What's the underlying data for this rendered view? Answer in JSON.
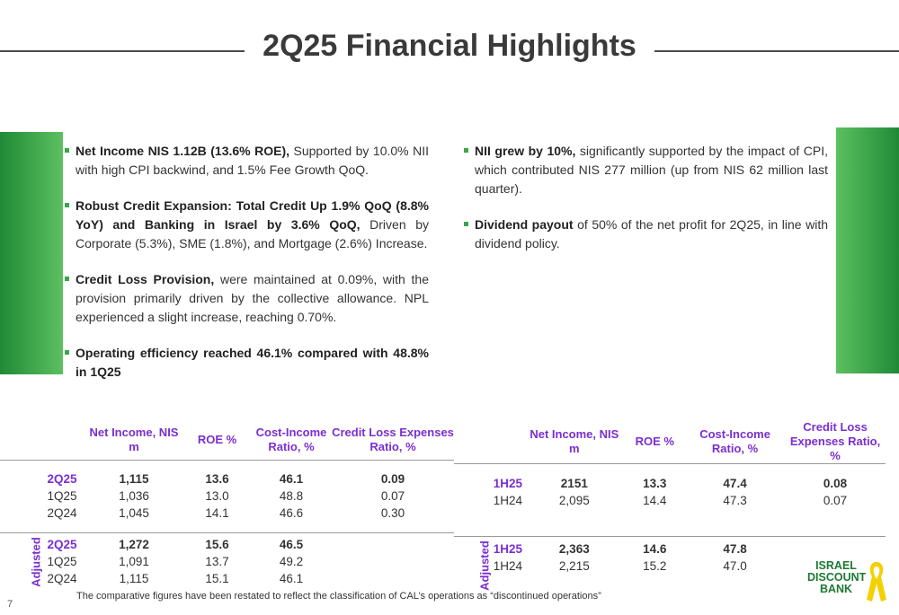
{
  "title": "2Q25 Financial Highlights",
  "left_bullets": [
    {
      "bold": "Net Income NIS 1.12B (13.6% ROE),",
      "text": " Supported by 10.0% NII with high CPI backwind, and 1.5% Fee Growth QoQ."
    },
    {
      "bold": "Robust Credit Expansion: Total Credit Up 1.9% QoQ (8.8% YoY) and Banking in Israel by 3.6% QoQ,",
      "text": " Driven by Corporate (5.3%), SME (1.8%), and Mortgage (2.6%) Increase."
    },
    {
      "bold": "Credit Loss Provision,",
      "text": " were maintained at 0.09%, with the provision primarily driven by the collective allowance. NPL experienced a slight increase, reaching 0.70%."
    },
    {
      "bold": "Operating efficiency reached 46.1% compared with  48.8% in 1Q25",
      "text": ""
    }
  ],
  "right_bullets": [
    {
      "bold": "NII grew by 10%,",
      "text": " significantly supported by the impact of CPI, which contributed NIS 277 million (up from NIS 62 million last quarter)."
    },
    {
      "bold": "Dividend payout",
      "text": " of 50% of the net profit for 2Q25, in line with dividend policy."
    }
  ],
  "table_left": {
    "headers": [
      "Net Income, NIS m",
      "ROE %",
      "Cost-Income Ratio, %",
      "Credit Loss Expenses Ratio, %"
    ],
    "reported": [
      {
        "period": "2Q25",
        "net_income": "1,115",
        "roe": "13.6",
        "cost_income": "46.1",
        "credit_loss": "0.09"
      },
      {
        "period": "1Q25",
        "net_income": "1,036",
        "roe": "13.0",
        "cost_income": "48.8",
        "credit_loss": "0.07"
      },
      {
        "period": "2Q24",
        "net_income": "1,045",
        "roe": "14.1",
        "cost_income": "46.6",
        "credit_loss": "0.30"
      }
    ],
    "adjusted_label": "Adjusted",
    "adjusted": [
      {
        "period": "2Q25",
        "net_income": "1,272",
        "roe": "15.6",
        "cost_income": "46.5"
      },
      {
        "period": "1Q25",
        "net_income": "1,091",
        "roe": "13.7",
        "cost_income": "49.2"
      },
      {
        "period": "2Q24",
        "net_income": "1,115",
        "roe": "15.1",
        "cost_income": "46.1"
      }
    ]
  },
  "table_right": {
    "headers": [
      "Net Income, NIS m",
      "ROE %",
      "Cost-Income Ratio, %",
      "Credit Loss Expenses Ratio, %"
    ],
    "reported": [
      {
        "period": "1H25",
        "net_income": "2151",
        "roe": "13.3",
        "cost_income": "47.4",
        "credit_loss": "0.08"
      },
      {
        "period": "1H24",
        "net_income": "2,095",
        "roe": "14.4",
        "cost_income": "47.3",
        "credit_loss": "0.07"
      }
    ],
    "adjusted_label": "Adjusted",
    "adjusted": [
      {
        "period": "1H25",
        "net_income": "2,363",
        "roe": "14.6",
        "cost_income": "47.8"
      },
      {
        "period": "1H24",
        "net_income": "2,215",
        "roe": "15.2",
        "cost_income": "47.0"
      }
    ]
  },
  "footnote": "The comparative figures have been restated to reflect the classification of CAL’s operations as “discontinued operations”",
  "page_number": "7",
  "logo": {
    "line1": "ISRAEL",
    "line2": "DISCOUNT",
    "line3": "BANK"
  },
  "colors": {
    "accent_green": "#3aa64a",
    "header_purple": "#7a2fd0",
    "logo_green": "#1d7a33",
    "ribbon_yellow": "#f5d000"
  }
}
